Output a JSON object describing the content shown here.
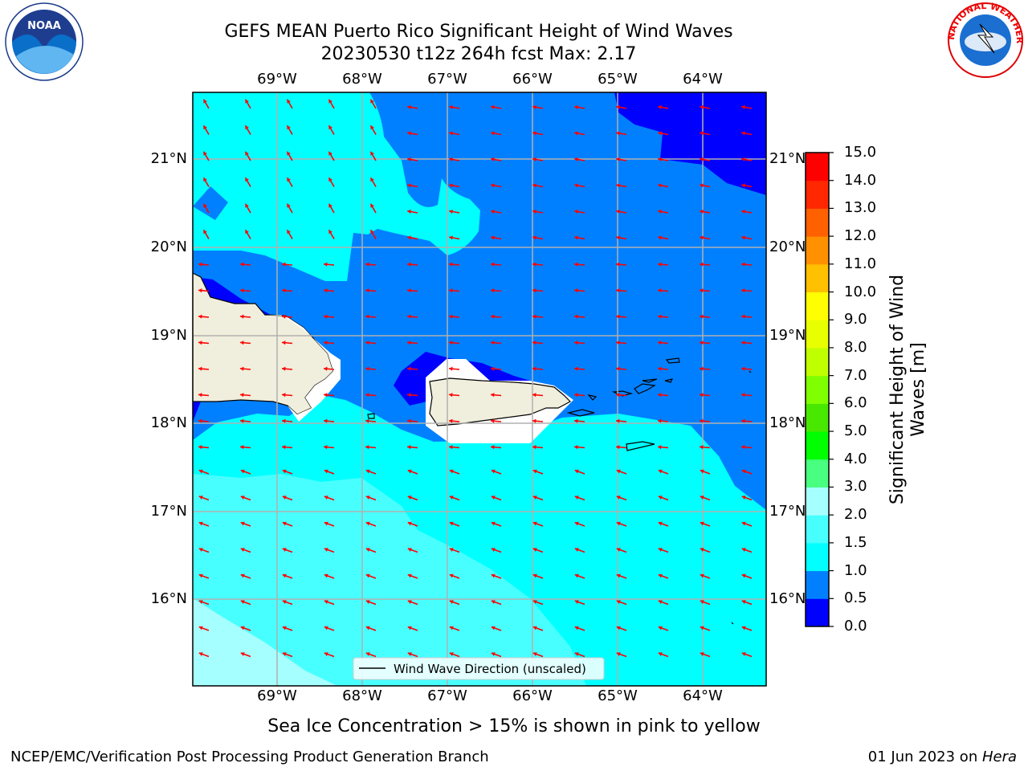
{
  "title": {
    "line1": "GEFS MEAN Puerto Rico Significant Height of Wind Waves",
    "line2": "20230530 t12z 264h fcst   Max: 2.17"
  },
  "map": {
    "lon_labels": [
      "69°W",
      "68°W",
      "67°W",
      "66°W",
      "65°W",
      "64°W"
    ],
    "lat_labels": [
      "21°N",
      "20°N",
      "19°N",
      "18°N",
      "17°N",
      "16°N"
    ],
    "legend_label": "Wind Wave Direction (unscaled)",
    "arrow_color": "#ff0000"
  },
  "colorbar": {
    "label": "Significant Height of Wind Waves [m]",
    "label_line1": "Significant Height of Wind",
    "label_line2": "Waves [m]",
    "ticks": [
      "0.0",
      "0.5",
      "1.0",
      "1.5",
      "2.0",
      "3.0",
      "4.0",
      "5.0",
      "6.0",
      "7.0",
      "8.0",
      "9.0",
      "10.0",
      "11.0",
      "12.0",
      "13.0",
      "14.0",
      "15.0"
    ],
    "colors": [
      "#0000ff",
      "#0080ff",
      "#00ffff",
      "#48ffff",
      "#a6ffff",
      "#48ff80",
      "#00ff00",
      "#48e800",
      "#80ff00",
      "#c0ff00",
      "#e8ff00",
      "#ffff00",
      "#ffc000",
      "#ff9000",
      "#ff6000",
      "#ff2800",
      "#ff0000"
    ]
  },
  "sea_ice_note": "Sea Ice Concentration > 15% is shown in pink to yellow",
  "footer": {
    "left": "NCEP/EMC/Verification Post Processing Product Generation Branch",
    "date": "01 Jun 2023 on ",
    "machine": "Hera"
  },
  "logos": {
    "noaa": "NOAA",
    "nws_ring": "NATIONAL WEATHER SERVICE"
  }
}
